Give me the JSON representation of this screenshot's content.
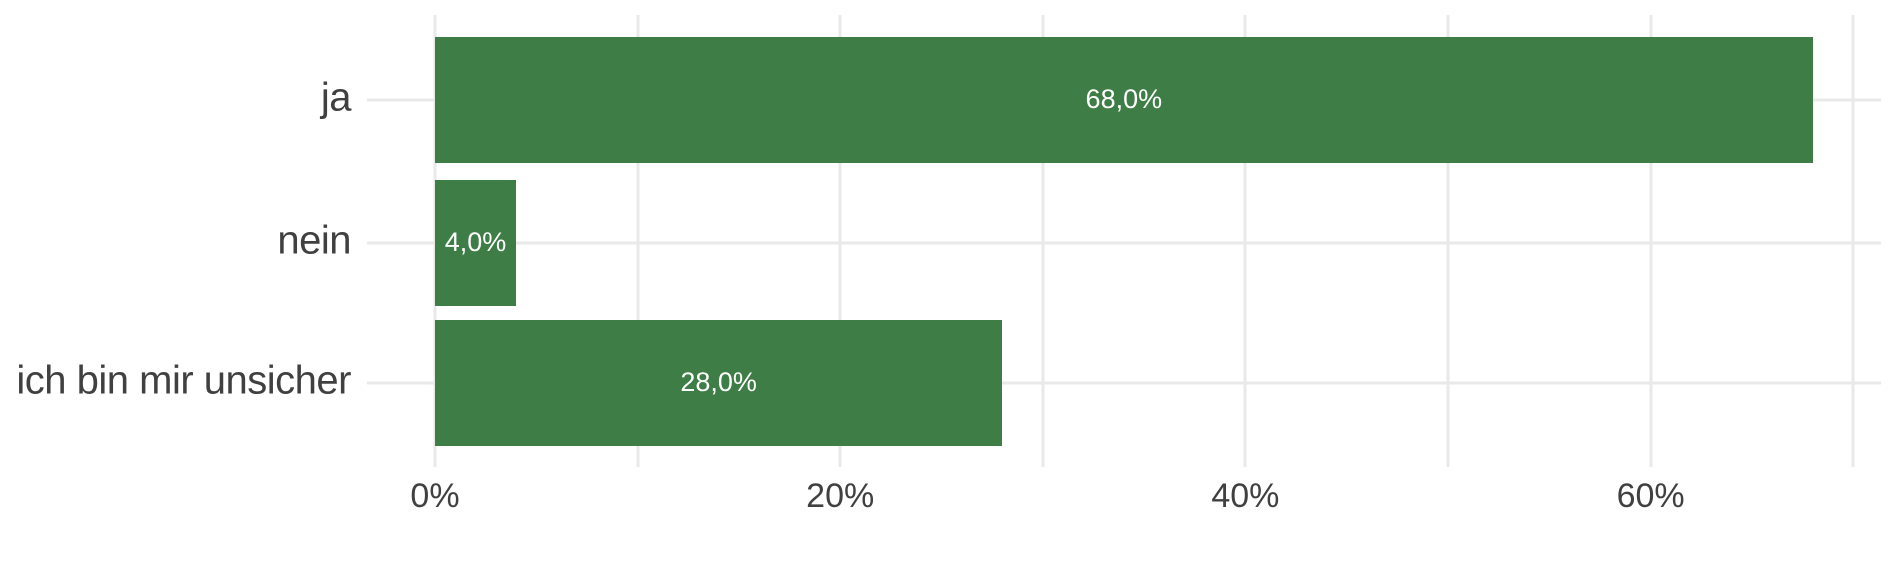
{
  "chart_data": {
    "type": "bar",
    "orientation": "horizontal",
    "title": "",
    "categories": [
      "ja",
      "nein",
      "ich bin mir unsicher"
    ],
    "values": [
      68.0,
      4.0,
      28.0
    ],
    "value_labels": [
      "68,0%",
      "4,0%",
      "28,0%"
    ],
    "x_axis": {
      "tick_percents": [
        0,
        20,
        40,
        60
      ],
      "tick_labels": [
        "0%",
        "20%",
        "40%",
        "60%"
      ],
      "gridline_percents": [
        0,
        10,
        20,
        30,
        40,
        50,
        60,
        70
      ],
      "range": [
        0,
        71.4
      ],
      "unit": "percent"
    },
    "grid": true,
    "legend": false,
    "colors": {
      "bar": "#3e7d46",
      "value_label_inside": "#ffffff",
      "axis_text": "#404040",
      "gridline": "#e9e9e9"
    }
  }
}
